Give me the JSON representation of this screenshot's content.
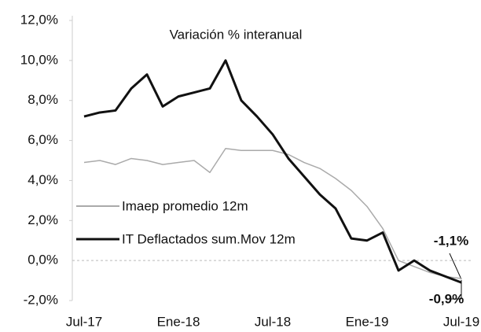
{
  "chart_data": {
    "type": "line",
    "title": "Variación % interanual",
    "categories": [
      "Jul-17",
      null,
      null,
      null,
      null,
      null,
      "Ene-18",
      null,
      null,
      null,
      null,
      null,
      "Jul-18",
      null,
      null,
      null,
      null,
      null,
      "Ene-19",
      null,
      null,
      null,
      null,
      null,
      "Jul-19"
    ],
    "series": [
      {
        "name": "Imaep promedio 12m",
        "color": "#aaaaaa",
        "values": [
          4.9,
          5.0,
          4.8,
          5.1,
          5.0,
          4.8,
          4.9,
          5.0,
          4.4,
          5.6,
          5.5,
          5.5,
          5.5,
          5.3,
          4.9,
          4.6,
          4.1,
          3.5,
          2.7,
          1.6,
          0.0,
          -0.3,
          -0.6,
          -0.8,
          -0.9
        ],
        "value_labels": [
          null,
          null,
          null,
          null,
          null,
          null,
          null,
          null,
          null,
          null,
          null,
          null,
          null,
          null,
          null,
          null,
          null,
          null,
          null,
          null,
          null,
          null,
          null,
          null,
          "-0,9%"
        ]
      },
      {
        "name": "IT Deflactados sum.Mov 12m",
        "color": "#111111",
        "values": [
          7.2,
          7.4,
          7.5,
          8.6,
          9.3,
          7.7,
          8.2,
          8.4,
          8.6,
          10.0,
          8.0,
          7.2,
          6.3,
          5.1,
          4.2,
          3.3,
          2.6,
          1.1,
          1.0,
          1.4,
          -0.5,
          0.0,
          -0.5,
          -0.8,
          -1.1
        ],
        "value_labels": [
          null,
          null,
          null,
          null,
          null,
          null,
          null,
          null,
          null,
          null,
          null,
          null,
          null,
          null,
          null,
          null,
          null,
          null,
          null,
          null,
          null,
          null,
          null,
          null,
          "-1,1%"
        ]
      }
    ],
    "ylim": [
      -2,
      12
    ],
    "yticks": [
      {
        "value": -2,
        "label": "-2,0%"
      },
      {
        "value": 0,
        "label": "0,0%"
      },
      {
        "value": 2,
        "label": "2,0%"
      },
      {
        "value": 4,
        "label": "4,0%"
      },
      {
        "value": 6,
        "label": "6,0%"
      },
      {
        "value": 8,
        "label": "8,0%"
      },
      {
        "value": 10,
        "label": "10,0%"
      },
      {
        "value": 12,
        "label": "12,0%"
      }
    ]
  }
}
